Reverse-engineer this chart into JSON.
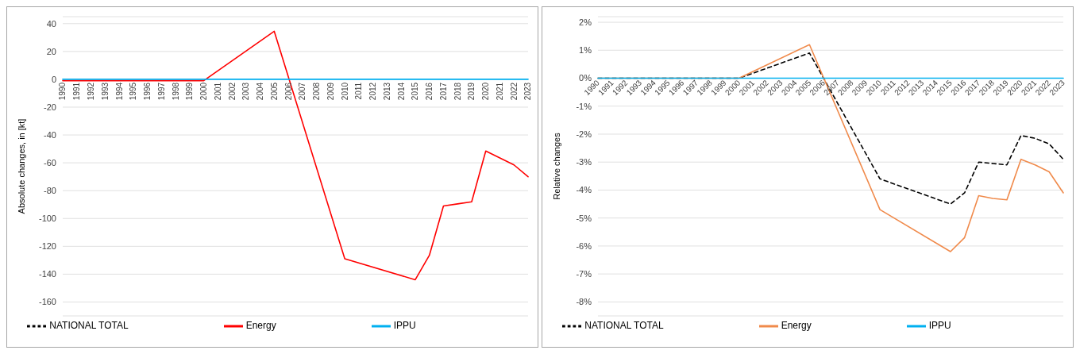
{
  "chart_data": [
    {
      "type": "line",
      "ylabel": "Absolute changes, in [kt]",
      "categories": [
        "1990",
        "1991",
        "1992",
        "1993",
        "1994",
        "1995",
        "1996",
        "1997",
        "1998",
        "1999",
        "2000",
        "2001",
        "2002",
        "2003",
        "2004",
        "2005",
        "2006",
        "2007",
        "2008",
        "2009",
        "2010",
        "2011",
        "2012",
        "2013",
        "2014",
        "2015",
        "2016",
        "2017",
        "2018",
        "2019",
        "2020",
        "2021",
        "2022",
        "2023"
      ],
      "ylim": [
        -170,
        45
      ],
      "yticks": [
        -160,
        -140,
        -120,
        -100,
        -80,
        -60,
        -40,
        -20,
        0,
        20,
        40
      ],
      "grid": "y",
      "legend": "bottom",
      "marker": "none",
      "series": [
        {
          "name": "NATIONAL TOTAL",
          "color": "#000000",
          "line_style": "dashed",
          "values": [
            null,
            null,
            null,
            null,
            null,
            null,
            null,
            null,
            null,
            null,
            null,
            null,
            null,
            null,
            null,
            null,
            null,
            null,
            null,
            null,
            null,
            null,
            null,
            null,
            null,
            null,
            null,
            null,
            null,
            null,
            null,
            null,
            null,
            null
          ]
        },
        {
          "name": "Energy",
          "color": "#ff0000",
          "line_style": "solid",
          "values": [
            -1,
            null,
            null,
            null,
            null,
            -1,
            null,
            null,
            null,
            null,
            -1,
            null,
            null,
            null,
            null,
            34.5,
            null,
            null,
            null,
            null,
            -129,
            null,
            null,
            null,
            null,
            -144,
            -126.5,
            -91,
            -89.5,
            -88,
            -51.5,
            -56.5,
            -61.5,
            -70
          ]
        },
        {
          "name": "IPPU",
          "color": "#00b0f0",
          "line_style": "solid",
          "values": [
            0,
            0,
            0,
            0,
            0,
            0,
            0,
            0,
            0,
            0,
            0,
            0,
            0,
            0,
            0,
            0,
            0,
            0,
            0,
            0,
            0,
            0,
            0,
            0,
            0,
            0,
            0,
            0,
            0,
            0,
            0,
            0,
            0,
            0
          ]
        }
      ]
    },
    {
      "type": "line",
      "ylabel": "Relative changes",
      "categories": [
        "1990",
        "1991",
        "1992",
        "1993",
        "1994",
        "1995",
        "1996",
        "1997",
        "1998",
        "1999",
        "2000",
        "2001",
        "2002",
        "2003",
        "2004",
        "2005",
        "2006",
        "2007",
        "2008",
        "2009",
        "2010",
        "2011",
        "2012",
        "2013",
        "2014",
        "2015",
        "2016",
        "2017",
        "2018",
        "2019",
        "2020",
        "2021",
        "2022",
        "2023"
      ],
      "ylim": [
        -8.5,
        2.2
      ],
      "yticks": [
        {
          "value": -8,
          "label": "-8%"
        },
        {
          "value": -7,
          "label": "-7%"
        },
        {
          "value": -6,
          "label": "-6%"
        },
        {
          "value": -5,
          "label": "-5%"
        },
        {
          "value": -4,
          "label": "-4%"
        },
        {
          "value": -3,
          "label": "-3%"
        },
        {
          "value": -2,
          "label": "-2%"
        },
        {
          "value": -1,
          "label": "-1%"
        },
        {
          "value": 0,
          "label": "0%"
        },
        {
          "value": 1,
          "label": "1%"
        },
        {
          "value": 2,
          "label": "2%"
        }
      ],
      "grid": "y",
      "legend": "bottom",
      "marker": "none",
      "series": [
        {
          "name": "NATIONAL TOTAL",
          "color": "#000000",
          "line_style": "dashed",
          "values": [
            0,
            null,
            null,
            null,
            null,
            0,
            null,
            null,
            null,
            null,
            0,
            null,
            null,
            null,
            null,
            0.9,
            null,
            null,
            null,
            null,
            -3.6,
            null,
            null,
            null,
            null,
            -4.5,
            -4.1,
            -3,
            -3.05,
            -3.1,
            -2.05,
            -2.15,
            -2.35,
            -2.9
          ]
        },
        {
          "name": "Energy",
          "color": "#f08a4b",
          "line_style": "solid",
          "values": [
            0,
            null,
            null,
            null,
            null,
            0,
            null,
            null,
            null,
            null,
            0,
            null,
            null,
            null,
            null,
            1.2,
            null,
            null,
            null,
            null,
            -4.7,
            null,
            null,
            null,
            null,
            -6.2,
            -5.7,
            -4.2,
            -4.3,
            -4.35,
            -2.9,
            -3.1,
            -3.35,
            -4.1
          ]
        },
        {
          "name": "IPPU",
          "color": "#00b0f0",
          "line_style": "solid",
          "values": [
            0,
            0,
            0,
            0,
            0,
            0,
            0,
            0,
            0,
            0,
            0,
            0,
            0,
            0,
            0,
            0,
            0,
            0,
            0,
            0,
            0,
            0,
            0,
            0,
            0,
            0,
            0,
            0,
            0,
            0,
            0,
            0,
            0,
            0
          ]
        }
      ]
    }
  ]
}
